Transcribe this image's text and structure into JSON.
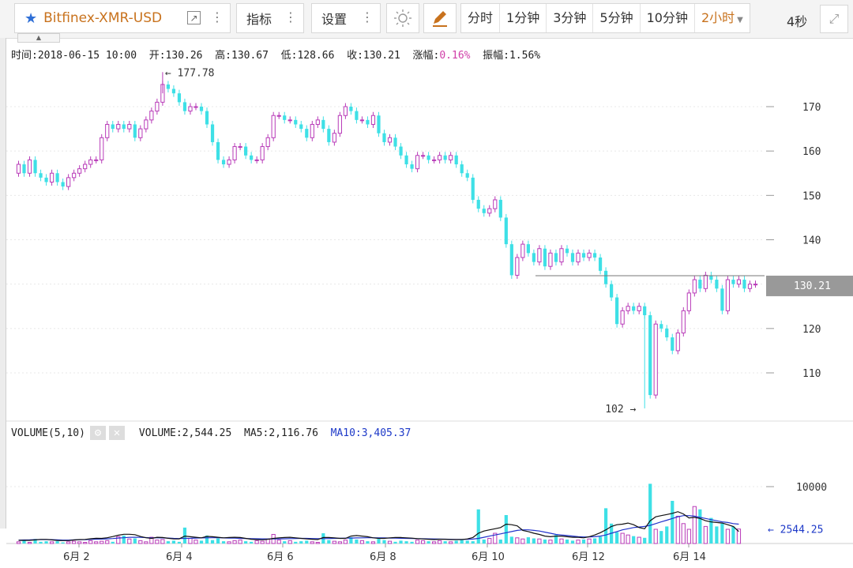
{
  "toolbar": {
    "symbol": "Bitfinex-XMR-USD",
    "indicator_label": "指标",
    "settings_label": "设置",
    "periods": [
      {
        "label": "分时",
        "active": false
      },
      {
        "label": "1分钟",
        "active": false
      },
      {
        "label": "3分钟",
        "active": false
      },
      {
        "label": "5分钟",
        "active": false
      },
      {
        "label": "10分钟",
        "active": false
      },
      {
        "label": "2小时",
        "active": true
      }
    ],
    "refresh": "4秒"
  },
  "ohlc": {
    "time_label": "时间:",
    "time": "2018-06-15 10:00",
    "open_label": "开:",
    "open": "130.26",
    "high_label": "高:",
    "high": "130.67",
    "low_label": "低:",
    "low": "128.66",
    "close_label": "收:",
    "close": "130.21",
    "change_label": "涨幅:",
    "change": "0.16%",
    "amp_label": "振幅:",
    "amp": "1.56%"
  },
  "price_axis": {
    "ticks": [
      "170",
      "160",
      "150",
      "140",
      "120",
      "110"
    ],
    "current": "130.21",
    "max_marker": "177.78",
    "min_marker": "102"
  },
  "volume": {
    "title": "VOLUME(5,10)",
    "volume_label": "VOLUME:",
    "volume": "2,544.25",
    "ma5_label": "MA5:",
    "ma5": "2,116.76",
    "ma10_label": "MA10:",
    "ma10": "3,405.37",
    "axis_tick": "10000",
    "last_marker": "2544.25"
  },
  "dates": [
    "6月 2",
    "6月 4",
    "6月 6",
    "6月 8",
    "6月 10",
    "6月 12",
    "6月 14"
  ],
  "colors": {
    "up": "#b83ab8",
    "down": "#3ee0e6",
    "ma5": "#111111",
    "ma10": "#2233cc",
    "accent": "#c8721d"
  },
  "chart_data": {
    "type": "candlestick",
    "price_range": [
      100,
      180
    ],
    "series": [
      {
        "name": "XMR-USD",
        "points": [
          [
            155,
            157
          ],
          [
            157,
            155
          ],
          [
            155,
            158
          ],
          [
            158,
            155
          ],
          [
            155,
            154
          ],
          [
            154,
            153
          ],
          [
            153,
            155
          ],
          [
            155,
            153
          ],
          [
            153,
            152
          ],
          [
            152,
            154
          ],
          [
            154,
            155
          ],
          [
            155,
            156
          ],
          [
            156,
            157
          ],
          [
            157,
            158
          ],
          [
            158,
            158
          ],
          [
            158,
            163
          ],
          [
            163,
            166
          ],
          [
            166,
            165
          ],
          [
            165,
            166
          ],
          [
            166,
            165
          ],
          [
            165,
            166
          ],
          [
            166,
            163
          ],
          [
            163,
            165
          ],
          [
            165,
            167
          ],
          [
            167,
            169
          ],
          [
            169,
            171
          ],
          [
            171,
            175
          ],
          [
            175,
            174
          ],
          [
            174,
            173
          ],
          [
            173,
            171
          ],
          [
            171,
            169
          ],
          [
            169,
            170
          ],
          [
            170,
            170
          ],
          [
            170,
            169
          ],
          [
            169,
            166
          ],
          [
            166,
            162
          ],
          [
            162,
            158
          ],
          [
            158,
            157
          ],
          [
            157,
            158
          ],
          [
            158,
            161
          ],
          [
            161,
            161
          ],
          [
            161,
            159
          ],
          [
            159,
            158
          ],
          [
            158,
            158
          ],
          [
            158,
            161
          ],
          [
            161,
            163
          ],
          [
            163,
            168
          ],
          [
            168,
            168
          ],
          [
            168,
            167
          ],
          [
            167,
            167
          ],
          [
            167,
            166
          ],
          [
            166,
            165
          ],
          [
            165,
            163
          ],
          [
            163,
            166
          ],
          [
            166,
            167
          ],
          [
            167,
            165
          ],
          [
            165,
            162
          ],
          [
            162,
            164
          ],
          [
            164,
            168
          ],
          [
            168,
            170
          ],
          [
            170,
            169
          ],
          [
            169,
            167
          ],
          [
            167,
            167
          ],
          [
            167,
            166
          ],
          [
            166,
            168
          ],
          [
            168,
            164
          ],
          [
            164,
            162
          ],
          [
            162,
            163
          ],
          [
            163,
            161
          ],
          [
            161,
            159
          ],
          [
            159,
            157
          ],
          [
            157,
            156
          ],
          [
            156,
            159
          ],
          [
            159,
            159
          ],
          [
            159,
            158
          ],
          [
            158,
            158
          ],
          [
            158,
            159
          ],
          [
            159,
            158
          ],
          [
            158,
            159
          ],
          [
            159,
            157
          ],
          [
            157,
            155
          ],
          [
            155,
            154
          ],
          [
            154,
            149
          ],
          [
            149,
            147
          ],
          [
            147,
            146
          ],
          [
            146,
            147
          ],
          [
            147,
            149
          ],
          [
            149,
            145
          ],
          [
            145,
            139
          ],
          [
            139,
            132
          ],
          [
            132,
            136
          ],
          [
            136,
            139
          ],
          [
            139,
            137
          ],
          [
            137,
            135
          ],
          [
            135,
            138
          ],
          [
            138,
            134
          ],
          [
            134,
            137
          ],
          [
            137,
            135
          ],
          [
            135,
            138
          ],
          [
            138,
            137
          ],
          [
            137,
            135
          ],
          [
            135,
            137
          ],
          [
            137,
            136
          ],
          [
            136,
            137
          ],
          [
            137,
            136
          ],
          [
            136,
            133
          ],
          [
            133,
            130
          ],
          [
            130,
            127
          ],
          [
            127,
            121
          ],
          [
            121,
            124
          ],
          [
            124,
            125
          ],
          [
            125,
            124
          ],
          [
            124,
            125
          ],
          [
            125,
            123
          ],
          [
            123,
            105
          ],
          [
            105,
            121
          ],
          [
            121,
            120
          ],
          [
            120,
            118
          ],
          [
            118,
            115
          ],
          [
            115,
            119
          ],
          [
            119,
            124
          ],
          [
            124,
            128
          ],
          [
            128,
            131
          ],
          [
            131,
            129
          ],
          [
            129,
            132
          ],
          [
            132,
            131
          ],
          [
            131,
            129
          ],
          [
            129,
            124
          ],
          [
            124,
            131
          ],
          [
            131,
            130
          ],
          [
            130,
            131
          ],
          [
            131,
            129
          ],
          [
            129,
            130
          ],
          [
            130,
            130
          ]
        ]
      },
      {
        "name": "VOLUME",
        "points": [
          300,
          500,
          200,
          800,
          300,
          400,
          300,
          400,
          200,
          300,
          400,
          300,
          200,
          500,
          300,
          400,
          500,
          300,
          1200,
          1400,
          800,
          900,
          500,
          300,
          1100,
          600,
          700,
          400,
          500,
          300,
          2800,
          900,
          600,
          500,
          1400,
          600,
          900,
          400,
          300,
          500,
          600,
          400,
          300,
          500,
          400,
          800,
          1600,
          600,
          400,
          500,
          300,
          400,
          500,
          300,
          200,
          1800,
          600,
          400,
          300,
          600,
          1100,
          700,
          500,
          400,
          300,
          800,
          600,
          400,
          300,
          500,
          400,
          300,
          600,
          500,
          400,
          300,
          500,
          400,
          300,
          500,
          600,
          500,
          400,
          6000,
          700,
          900,
          1800,
          700,
          5000,
          1200,
          1000,
          800,
          1100,
          900,
          800,
          700,
          600,
          1500,
          800,
          700,
          500,
          600,
          700,
          800,
          900,
          1200,
          6200,
          3500,
          2000,
          1800,
          1500,
          1300,
          1100,
          1000,
          10500,
          2500,
          2200,
          3000,
          7500,
          4800,
          3500,
          2500,
          6500,
          6000,
          3000,
          4500,
          3000,
          3500,
          2500,
          3000,
          2544
        ]
      }
    ],
    "ma5": [
      550,
      560,
      560,
      640,
      720,
      720,
      640,
      540,
      520,
      520,
      620,
      700,
      720,
      840,
      910,
      900,
      1020,
      1220,
      1460,
      1620,
      1620,
      1550,
      1230,
      1010,
      900,
      1100,
      1060,
      920,
      800,
      820,
      1300,
      1200,
      1100,
      1000,
      1250,
      1200,
      1100,
      1000,
      1050,
      1100,
      1050,
      900,
      750,
      700,
      650,
      750,
      900,
      1000,
      1050,
      1100,
      1000,
      900,
      800,
      750,
      700,
      1050,
      1050,
      1000,
      900,
      900,
      1300,
      1400,
      1300,
      1200,
      1000,
      900,
      900,
      1000,
      1050,
      1050,
      1000,
      950,
      850,
      800,
      750,
      700,
      750,
      750,
      700,
      700,
      700,
      800,
      1050,
      1800,
      2200,
      2400,
      2600,
      2800,
      3400,
      3300,
      3100,
      2300,
      2100,
      1800,
      1600,
      1300,
      1200,
      1300,
      1300,
      1200,
      1100,
      1100,
      1000,
      1200,
      1500,
      1900,
      2400,
      3000,
      3300,
      3400,
      3600,
      3300,
      2800,
      2600,
      4000,
      4700,
      4900,
      5100,
      5300,
      5600,
      5200,
      4500,
      4600,
      4400,
      4000,
      3800,
      3700,
      3600,
      3300,
      3000,
      2117
    ],
    "ma10": [
      600,
      620,
      640,
      680,
      700,
      700,
      680,
      640,
      600,
      600,
      640,
      660,
      680,
      720,
      760,
      780,
      820,
      880,
      960,
      1020,
      1080,
      1100,
      1080,
      1040,
      1000,
      1000,
      980,
      960,
      900,
      880,
      900,
      920,
      960,
      980,
      1000,
      1020,
      1020,
      980,
      960,
      940,
      900,
      880,
      860,
      840,
      820,
      800,
      800,
      820,
      840,
      860,
      880,
      900,
      900,
      880,
      860,
      860,
      880,
      900,
      920,
      940,
      960,
      980,
      1000,
      1020,
      1020,
      1000,
      980,
      960,
      940,
      920,
      900,
      880,
      860,
      840,
      820,
      800,
      780,
      760,
      740,
      720,
      720,
      740,
      780,
      900,
      1100,
      1300,
      1500,
      1700,
      1900,
      2100,
      2300,
      2400,
      2400,
      2300,
      2200,
      2000,
      1800,
      1600,
      1500,
      1400,
      1300,
      1200,
      1150,
      1150,
      1200,
      1300,
      1500,
      1800,
      2100,
      2400,
      2600,
      2800,
      2900,
      3000,
      3200,
      3500,
      3800,
      4100,
      4400,
      4700,
      4900,
      4900,
      4800,
      4600,
      4400,
      4200,
      4000,
      3800,
      3700,
      3500,
      3405
    ]
  }
}
